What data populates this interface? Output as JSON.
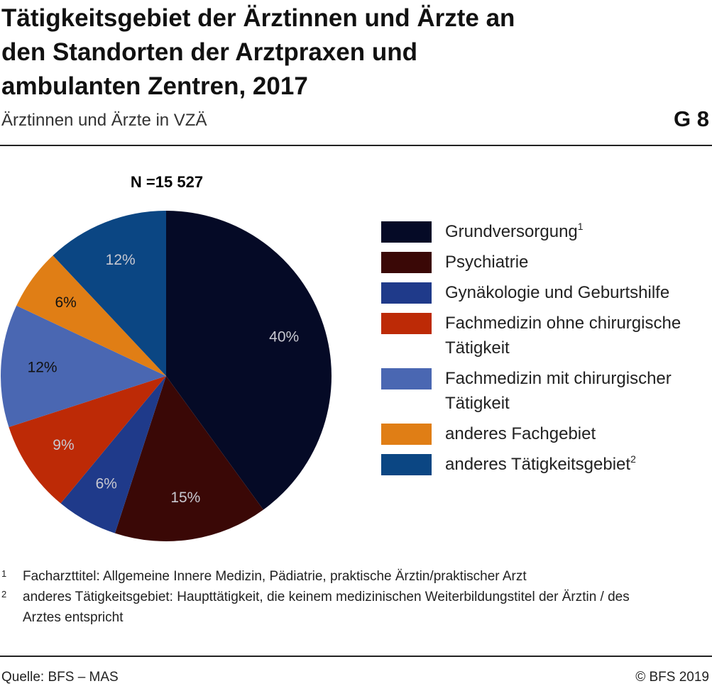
{
  "chart_data": {
    "type": "pie",
    "title": "Tätigkeitsgebiet der Ärztinnen und Ärzte an den Standorten der Arztpraxen und ambulanten Zentren, 2017",
    "subtitle": "Ärztinnen und Ärzte in VZÄ",
    "chart_id": "G 8",
    "annotation": "N =15 527",
    "categories": [
      "Grundversorgung",
      "Psychiatrie",
      "Gynäkologie und Geburtshilfe",
      "Fachmedizin ohne chirurgische Tätigkeit",
      "Fachmedizin mit chirurgischer Tätigkeit",
      "anderes Fachgebiet",
      "anderes Tätigkeitsgebiet"
    ],
    "category_notes": [
      "1",
      null,
      null,
      null,
      null,
      null,
      "2"
    ],
    "values": [
      40,
      15,
      6,
      9,
      12,
      6,
      12
    ],
    "value_labels": [
      "40%",
      "15%",
      "6%",
      "9%",
      "12%",
      "6%",
      "12%"
    ],
    "colors": [
      "#050a26",
      "#3a0806",
      "#1f3a8a",
      "#bd2a06",
      "#4a67b2",
      "#e07e15",
      "#0b4683"
    ],
    "footnotes": [
      {
        "mark": "1",
        "text": "Facharzttitel: Allgemeine Innere Medizin, Pädiatrie, praktische Ärztin/praktischer Arzt"
      },
      {
        "mark": "2",
        "text": "anderes Tätigkeitsgebiet: Haupttätigkeit, die keinem medizinischen Weiterbildungstitel der Ärztin / des Arztes entspricht"
      }
    ],
    "source": "Quelle: BFS – MAS",
    "copyright": "© BFS 2019"
  }
}
